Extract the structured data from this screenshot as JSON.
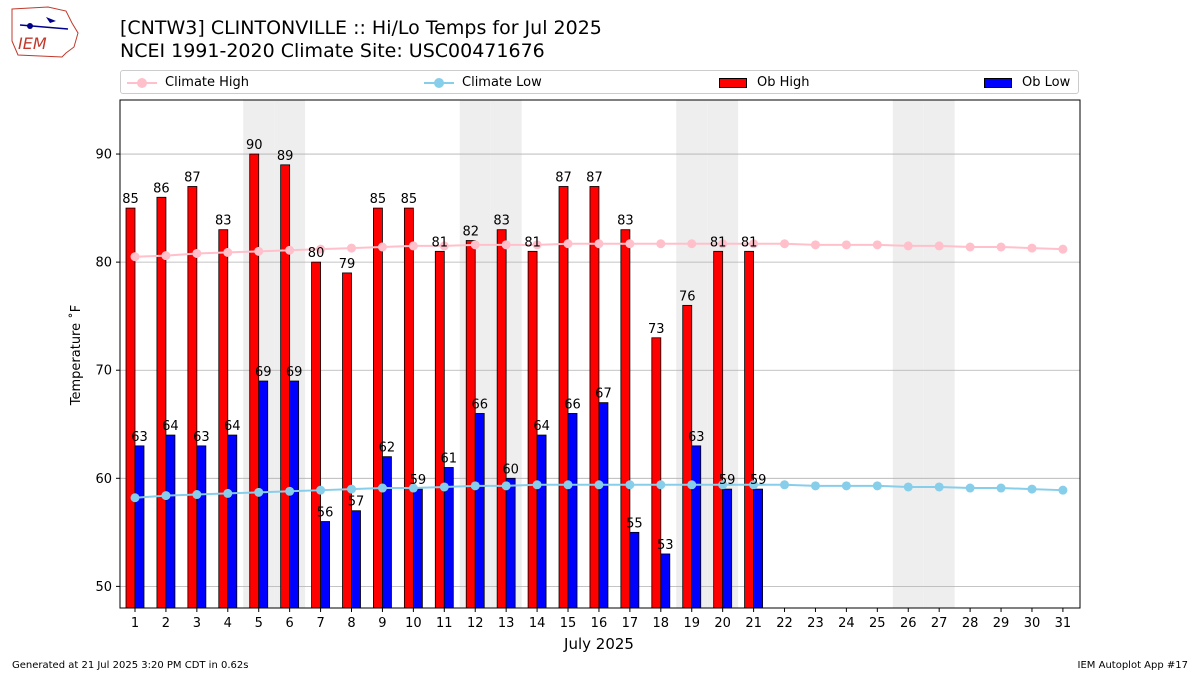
{
  "logo": {
    "text": "IEM"
  },
  "title_line1": "[CNTW3] CLINTONVILLE :: Hi/Lo Temps for Jul 2025",
  "title_line2": "NCEI 1991-2020 Climate Site: USC00471676",
  "footer_left": "Generated at 21 Jul 2025 3:20 PM CDT in 0.62s",
  "footer_right": "IEM Autoplot App #17",
  "colors": {
    "climate_high": "#ffc0cb",
    "climate_low": "#87ceeb",
    "ob_high": "#ff0000",
    "ob_low": "#0000ff",
    "weekend_shade": "#eeeeee",
    "grid": "#b0b0b0"
  },
  "legend": [
    {
      "label": "Climate High",
      "kind": "line",
      "color": "#ffc0cb"
    },
    {
      "label": "Climate Low",
      "kind": "line",
      "color": "#87ceeb"
    },
    {
      "label": "Ob High",
      "kind": "bar",
      "color": "#ff0000"
    },
    {
      "label": "Ob Low",
      "kind": "bar",
      "color": "#0000ff"
    }
  ],
  "chart_data": {
    "type": "bar",
    "xlabel": "July 2025",
    "ylabel": "Temperature ˚F",
    "ylim": [
      48,
      95
    ],
    "yticks": [
      50,
      60,
      70,
      80,
      90
    ],
    "grid": "horizontal",
    "legend_position": "top",
    "categories": [
      "1",
      "2",
      "3",
      "4",
      "5",
      "6",
      "7",
      "8",
      "9",
      "10",
      "11",
      "12",
      "13",
      "14",
      "15",
      "16",
      "17",
      "18",
      "19",
      "20",
      "21",
      "22",
      "23",
      "24",
      "25",
      "26",
      "27",
      "28",
      "29",
      "30",
      "31"
    ],
    "weekend_shaded_days": [
      5,
      6,
      12,
      13,
      19,
      20,
      26,
      27
    ],
    "series": [
      {
        "name": "Ob High",
        "kind": "bar",
        "color": "#ff0000",
        "values": [
          85,
          86,
          87,
          83,
          90,
          89,
          80,
          79,
          85,
          85,
          81,
          82,
          83,
          81,
          87,
          87,
          83,
          73,
          76,
          81,
          81,
          null,
          null,
          null,
          null,
          null,
          null,
          null,
          null,
          null,
          null
        ]
      },
      {
        "name": "Ob Low",
        "kind": "bar",
        "color": "#0000ff",
        "values": [
          63,
          64,
          63,
          64,
          69,
          69,
          56,
          57,
          62,
          59,
          61,
          66,
          60,
          64,
          66,
          67,
          55,
          53,
          63,
          59,
          59,
          null,
          null,
          null,
          null,
          null,
          null,
          null,
          null,
          null,
          null
        ]
      },
      {
        "name": "Climate High",
        "kind": "line",
        "color": "#ffc0cb",
        "values": [
          80.5,
          80.6,
          80.8,
          80.9,
          81.0,
          81.1,
          81.2,
          81.3,
          81.4,
          81.5,
          81.5,
          81.6,
          81.6,
          81.6,
          81.7,
          81.7,
          81.7,
          81.7,
          81.7,
          81.7,
          81.7,
          81.7,
          81.6,
          81.6,
          81.6,
          81.5,
          81.5,
          81.4,
          81.4,
          81.3,
          81.2
        ]
      },
      {
        "name": "Climate Low",
        "kind": "line",
        "color": "#87ceeb",
        "values": [
          58.2,
          58.4,
          58.5,
          58.6,
          58.7,
          58.8,
          58.9,
          59.0,
          59.1,
          59.1,
          59.2,
          59.3,
          59.3,
          59.4,
          59.4,
          59.4,
          59.4,
          59.4,
          59.4,
          59.4,
          59.4,
          59.4,
          59.3,
          59.3,
          59.3,
          59.2,
          59.2,
          59.1,
          59.1,
          59.0,
          58.9
        ]
      }
    ]
  }
}
